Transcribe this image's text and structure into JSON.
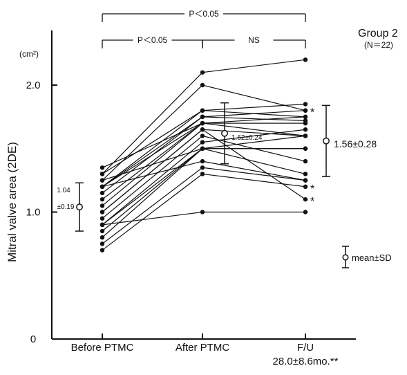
{
  "chart_data": {
    "type": "line",
    "title": "Group 2",
    "subtitle": "(N＝22)",
    "ylabel": "Mitral valve area (2DE)",
    "y_unit": "(cm²)",
    "ylim": [
      0,
      2.4
    ],
    "grid": false,
    "categories": [
      "Before PTMC",
      "After PTMC",
      "F/U"
    ],
    "x_sublabel": "28.0±8.6mo.**",
    "y_ticks": [
      {
        "value": 0,
        "label": "0"
      },
      {
        "value": 1.0,
        "label": "1.0"
      },
      {
        "value": 2.0,
        "label": "2.0"
      }
    ],
    "series": [
      {
        "values": [
          0.7,
          1.3,
          1.2
        ]
      },
      {
        "values": [
          0.75,
          1.35,
          1.25
        ]
      },
      {
        "values": [
          0.8,
          1.5,
          1.3
        ]
      },
      {
        "values": [
          0.85,
          1.5,
          1.5
        ]
      },
      {
        "values": [
          0.9,
          1.5,
          1.6
        ]
      },
      {
        "values": [
          0.9,
          1.55,
          1.65
        ]
      },
      {
        "values": [
          0.9,
          1.0,
          1.0
        ]
      },
      {
        "values": [
          0.95,
          1.6,
          1.4
        ]
      },
      {
        "values": [
          1.0,
          1.65,
          1.1
        ]
      },
      {
        "values": [
          1.0,
          1.65,
          1.6
        ]
      },
      {
        "values": [
          1.05,
          1.7,
          1.7
        ]
      },
      {
        "values": [
          1.1,
          1.7,
          1.75
        ]
      },
      {
        "values": [
          1.15,
          1.75,
          1.8
        ]
      },
      {
        "values": [
          1.2,
          1.7,
          1.7
        ]
      },
      {
        "values": [
          1.2,
          1.8,
          1.75
        ]
      },
      {
        "values": [
          1.2,
          1.4,
          1.25
        ]
      },
      {
        "values": [
          1.25,
          2.0,
          1.8
        ]
      },
      {
        "values": [
          1.25,
          1.5,
          1.5
        ]
      },
      {
        "values": [
          1.3,
          1.8,
          1.85
        ]
      },
      {
        "values": [
          1.3,
          2.1,
          2.2
        ]
      },
      {
        "values": [
          1.35,
          1.7,
          1.6
        ]
      },
      {
        "values": [
          1.2,
          1.75,
          1.72
        ]
      }
    ],
    "summary": {
      "before": {
        "mean": 1.04,
        "sd": 0.19,
        "label_mean": "1.04",
        "label_sd": "±0.19"
      },
      "after": {
        "mean": 1.62,
        "sd": 0.24,
        "label": "1.62±0.24"
      },
      "fu": {
        "mean": 1.56,
        "sd": 0.28,
        "label": "1.56±0.28"
      },
      "legend_label": "mean±SD"
    },
    "comparisons": [
      {
        "from": "Before PTMC",
        "to": "F/U",
        "label": "P＜0.05"
      },
      {
        "from": "Before PTMC",
        "to": "After PTMC",
        "label": "P＜0.05"
      },
      {
        "from": "After PTMC",
        "to": "F/U",
        "label": "NS"
      }
    ],
    "asterisks": [
      {
        "category": "F/U",
        "value": 1.8,
        "label": "*"
      },
      {
        "category": "F/U",
        "value": 1.2,
        "label": "*"
      },
      {
        "category": "F/U",
        "value": 1.1,
        "label": "*"
      }
    ]
  }
}
